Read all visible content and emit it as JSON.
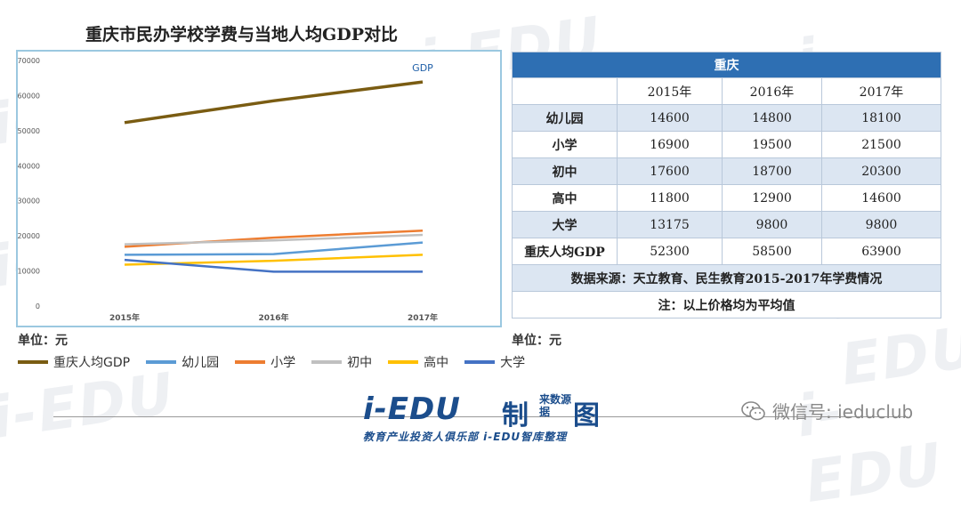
{
  "title": "重庆市民办学校学费与当地人均GDP对比",
  "unit_left": "单位：元",
  "unit_right": "单位：元",
  "watermark": "i-EDU",
  "chart_data": {
    "type": "line",
    "categories": [
      "2015年",
      "2016年",
      "2017年"
    ],
    "ylim": [
      0,
      70000
    ],
    "yticks": [
      0,
      10000,
      20000,
      30000,
      40000,
      50000,
      60000,
      70000
    ],
    "grid": false,
    "legend_position": "bottom",
    "annotation": "GDP",
    "series": [
      {
        "name": "重庆人均GDP",
        "color": "#7a5c12",
        "values": [
          52300,
          58500,
          63900
        ]
      },
      {
        "name": "幼儿园",
        "color": "#5b9bd5",
        "values": [
          14600,
          14800,
          18100
        ]
      },
      {
        "name": "小学",
        "color": "#ed7d31",
        "values": [
          16900,
          19500,
          21500
        ]
      },
      {
        "name": "初中",
        "color": "#c0c0c0",
        "values": [
          17600,
          18700,
          20300
        ]
      },
      {
        "name": "高中",
        "color": "#ffc000",
        "values": [
          11800,
          12900,
          14600
        ]
      },
      {
        "name": "大学",
        "color": "#4472c4",
        "values": [
          13175,
          9800,
          9800
        ]
      }
    ]
  },
  "table": {
    "city": "重庆",
    "years": [
      "2015年",
      "2016年",
      "2017年"
    ],
    "rows": [
      {
        "label": "幼儿园",
        "values": [
          "14600",
          "14800",
          "18100"
        ]
      },
      {
        "label": "小学",
        "values": [
          "16900",
          "19500",
          "21500"
        ]
      },
      {
        "label": "初中",
        "values": [
          "17600",
          "18700",
          "20300"
        ]
      },
      {
        "label": "高中",
        "values": [
          "11800",
          "12900",
          "14600"
        ]
      },
      {
        "label": "大学",
        "values": [
          "13175",
          "9800",
          "9800"
        ]
      },
      {
        "label": "重庆人均GDP",
        "values": [
          "52300",
          "58500",
          "63900"
        ]
      }
    ],
    "source": "数据来源：天立教育、民生教育2015-2017年学费情况",
    "note": "注：以上价格均为平均值"
  },
  "footer": {
    "logo_main": "i-EDU",
    "logo_zhi": "制",
    "logo_small": "来数源据",
    "logo_tu": "图",
    "logo_sub": "教育产业投资人俱乐部  i-EDU智库整理",
    "wechat": "微信号: ieduclub"
  }
}
